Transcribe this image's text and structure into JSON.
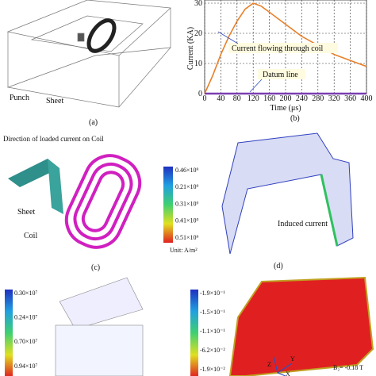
{
  "chart_data": {
    "type": "line",
    "x_label": "Time (μs)",
    "y_label": "Current (KA)",
    "x": [
      0,
      20,
      40,
      60,
      80,
      100,
      120,
      140,
      160,
      200,
      240,
      280,
      320,
      360,
      400
    ],
    "series": [
      {
        "name": "Current flowing through coil",
        "color": "#e8802a",
        "values": [
          0,
          6,
          13,
          19,
          24,
          28,
          30,
          29,
          27,
          23,
          19,
          16,
          13,
          11,
          9
        ]
      },
      {
        "name": "Datum line",
        "color": "#7a3fb0",
        "values": [
          0,
          0,
          0,
          0,
          0,
          0,
          0,
          0,
          0,
          0,
          0,
          0,
          0,
          0,
          0
        ]
      }
    ],
    "xlim": [
      0,
      400
    ],
    "xticks": [
      0,
      40,
      80,
      120,
      160,
      200,
      240,
      280,
      320,
      360,
      400
    ],
    "ylim": [
      0,
      30
    ],
    "yticks": [
      0,
      10,
      20,
      30
    ],
    "grid": true
  },
  "panels": {
    "a": {
      "caption": "(a)",
      "labels": [
        "Punch",
        "Sheet"
      ]
    },
    "b": {
      "caption": "(b)"
    },
    "c": {
      "caption": "(c)",
      "labels": [
        "Direction of loaded current on Coil",
        "Sheet",
        "Coil"
      ],
      "colorbar": [
        "0.46×10⁹",
        "0.21×10⁹",
        "0.31×10⁹",
        "0.41×10⁹",
        "0.51×10⁹"
      ],
      "unit": "Unit: A/m²"
    },
    "d": {
      "caption": "(d)",
      "labels": [
        "Induced current"
      ]
    },
    "e": {
      "colorbar": [
        "0.30×10⁷",
        "0.24×10⁷",
        "0.70×10⁷",
        "0.94×10⁷"
      ]
    },
    "f": {
      "colorbar": [
        "-1.9×10⁻¹",
        "-1.5×10⁻¹",
        "-1.1×10⁻¹",
        "-6.2×10⁻²",
        "-1.9×10⁻²"
      ],
      "label": "B₂= -0.18 T",
      "axes": [
        "Z",
        "Y",
        "X"
      ]
    }
  }
}
